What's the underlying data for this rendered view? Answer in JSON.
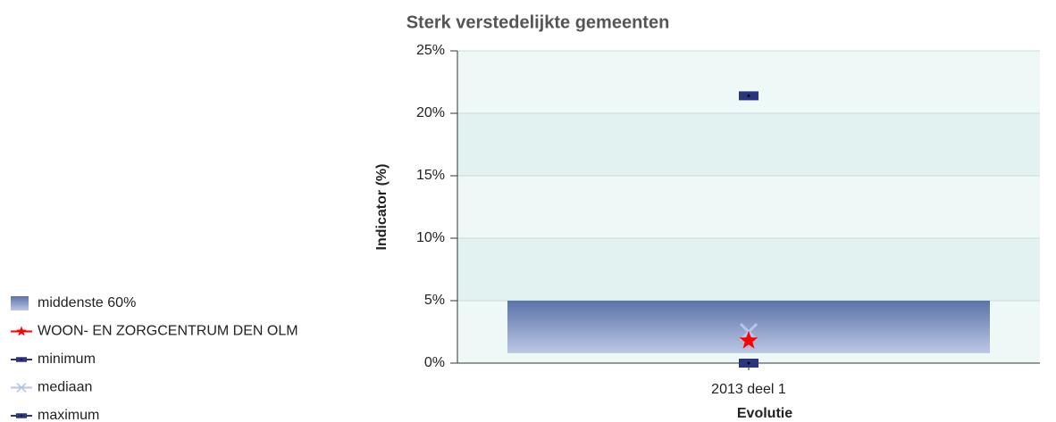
{
  "chart_data": {
    "type": "range",
    "title": "Sterk verstedelijkte gemeenten",
    "ylabel": "Indicator (%)",
    "xlabel": "Evolutie",
    "categories": [
      "2013 deel 1"
    ],
    "series": [
      {
        "name": "middenste 60%",
        "color": "#5b73a8",
        "low": [
          0.8
        ],
        "high": [
          5
        ]
      },
      {
        "name": "WOON- EN ZORGCENTRUM DEN OLM",
        "color": "#ff0000",
        "marker": "star",
        "values": [
          1.8
        ]
      },
      {
        "name": "minimum",
        "color": "#2a3580",
        "marker": "square",
        "values": [
          0
        ]
      },
      {
        "name": "mediaan",
        "color": "#b4c6ea",
        "marker": "x",
        "values": [
          2.5
        ]
      },
      {
        "name": "maximum",
        "color": "#2a3580",
        "marker": "square",
        "values": [
          21.4
        ]
      }
    ],
    "ylim": [
      0,
      25
    ],
    "yticks": [
      {
        "value": 0,
        "label": "0%"
      },
      {
        "value": 5,
        "label": "5%"
      },
      {
        "value": 10,
        "label": "10%"
      },
      {
        "value": 15,
        "label": "15%"
      },
      {
        "value": 20,
        "label": "20%"
      },
      {
        "value": 25,
        "label": "25%"
      }
    ],
    "grid": true
  }
}
